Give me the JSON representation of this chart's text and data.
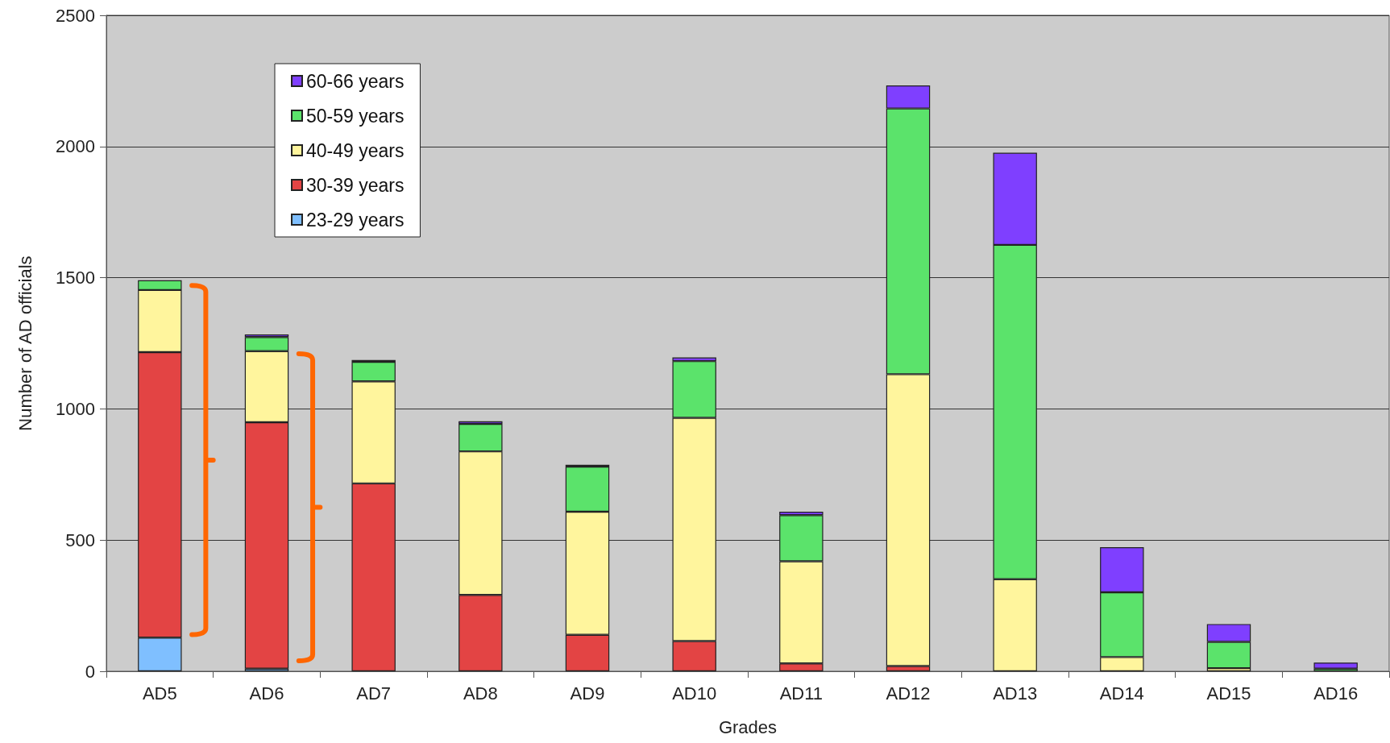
{
  "chart_data": {
    "type": "bar",
    "stacked": true,
    "xlabel": "Grades",
    "ylabel": "Number of AD officials",
    "categories": [
      "AD5",
      "AD6",
      "AD7",
      "AD8",
      "AD9",
      "AD10",
      "AD11",
      "AD12",
      "AD13",
      "AD14",
      "AD15",
      "AD16"
    ],
    "series": [
      {
        "name": "23-29 years",
        "color": "#7fbfff",
        "values": [
          128,
          10,
          0,
          0,
          0,
          0,
          0,
          0,
          0,
          0,
          0,
          0
        ]
      },
      {
        "name": "30-39 years",
        "color": "#e34444",
        "values": [
          1088,
          939,
          716,
          291,
          139,
          115,
          30,
          20,
          0,
          0,
          0,
          0
        ]
      },
      {
        "name": "40-49 years",
        "color": "#fff59d",
        "values": [
          237,
          271,
          389,
          547,
          469,
          851,
          389,
          1112,
          351,
          54,
          12,
          0
        ]
      },
      {
        "name": "50-59 years",
        "color": "#5be36b",
        "values": [
          37,
          54,
          74,
          105,
          172,
          216,
          176,
          1013,
          1274,
          247,
          100,
          10
        ]
      },
      {
        "name": "60-66 years",
        "color": "#7f3fff",
        "values": [
          0,
          10,
          7,
          10,
          7,
          14,
          13,
          88,
          351,
          172,
          68,
          23
        ]
      }
    ],
    "ylim": [
      0,
      2500
    ],
    "yticks": [
      0,
      500,
      1000,
      1500,
      2000,
      2500
    ],
    "grid": "y",
    "legend": "top left"
  }
}
